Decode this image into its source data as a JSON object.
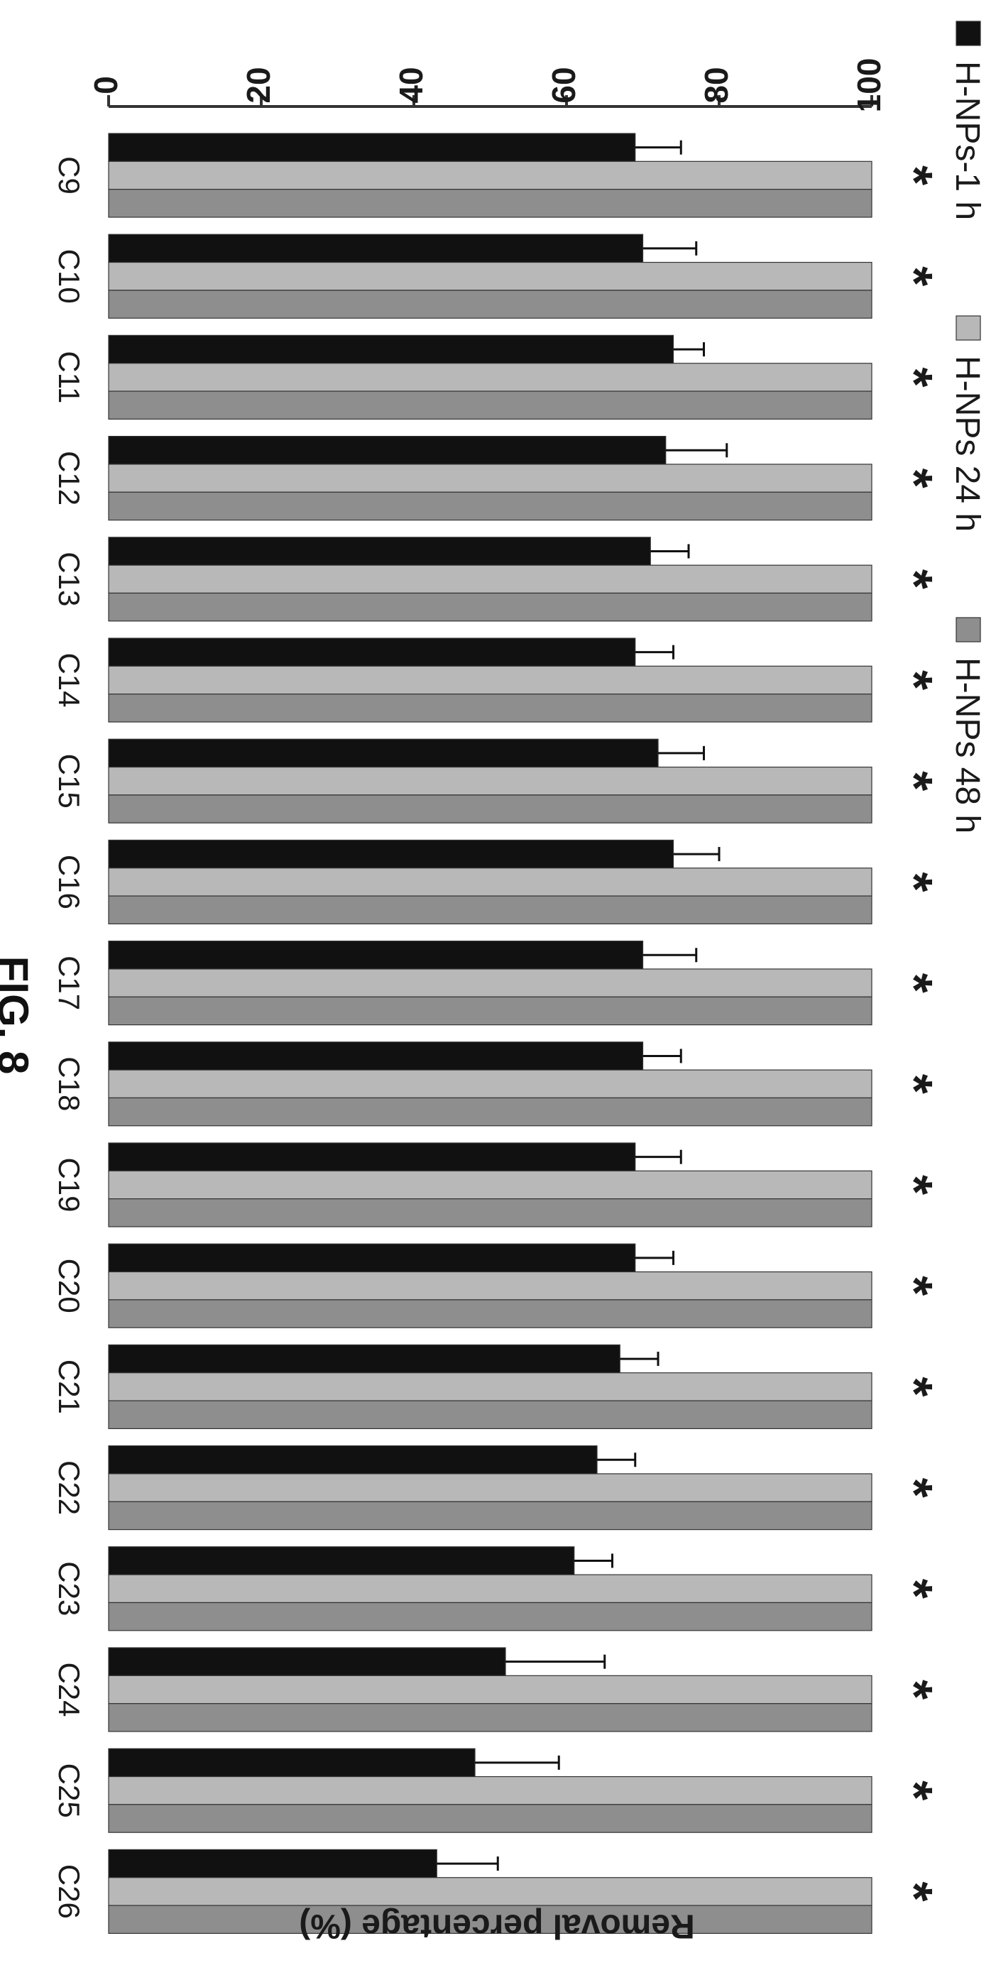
{
  "chart_data": {
    "type": "bar",
    "orientation": "vertical",
    "caption": "FIG. 8",
    "ylabel": "Removal percentage (%)",
    "xlabel": "",
    "ylim": [
      0,
      100
    ],
    "yticks": [
      0,
      20,
      40,
      60,
      80,
      100
    ],
    "ytick_labels": [
      "0",
      "20",
      "40",
      "60",
      "80",
      "100"
    ],
    "categories": [
      "C9",
      "C10",
      "C11",
      "C12",
      "C13",
      "C14",
      "C15",
      "C16",
      "C17",
      "C18",
      "C19",
      "C20",
      "C21",
      "C22",
      "C23",
      "C24",
      "C25",
      "C26"
    ],
    "significance_marker": "*",
    "legend_position": "top",
    "series": [
      {
        "name": "H-NPs-1 h",
        "color": "#111111",
        "values": [
          69,
          70,
          74,
          73,
          71,
          69,
          72,
          74,
          70,
          70,
          69,
          69,
          67,
          64,
          61,
          52,
          48,
          43
        ],
        "errors": [
          6,
          7,
          4,
          8,
          5,
          5,
          6,
          6,
          7,
          5,
          6,
          5,
          5,
          5,
          5,
          13,
          11,
          8
        ]
      },
      {
        "name": "H-NPs 24 h",
        "color": "#b8b8b8",
        "values": [
          100,
          100,
          100,
          100,
          100,
          100,
          100,
          100,
          100,
          100,
          100,
          100,
          100,
          100,
          100,
          100,
          100,
          100
        ]
      },
      {
        "name": "H-NPs 48 h",
        "color": "#8e8e8e",
        "values": [
          100,
          100,
          100,
          100,
          100,
          100,
          100,
          100,
          100,
          100,
          100,
          100,
          100,
          100,
          100,
          100,
          100,
          100
        ]
      }
    ]
  }
}
